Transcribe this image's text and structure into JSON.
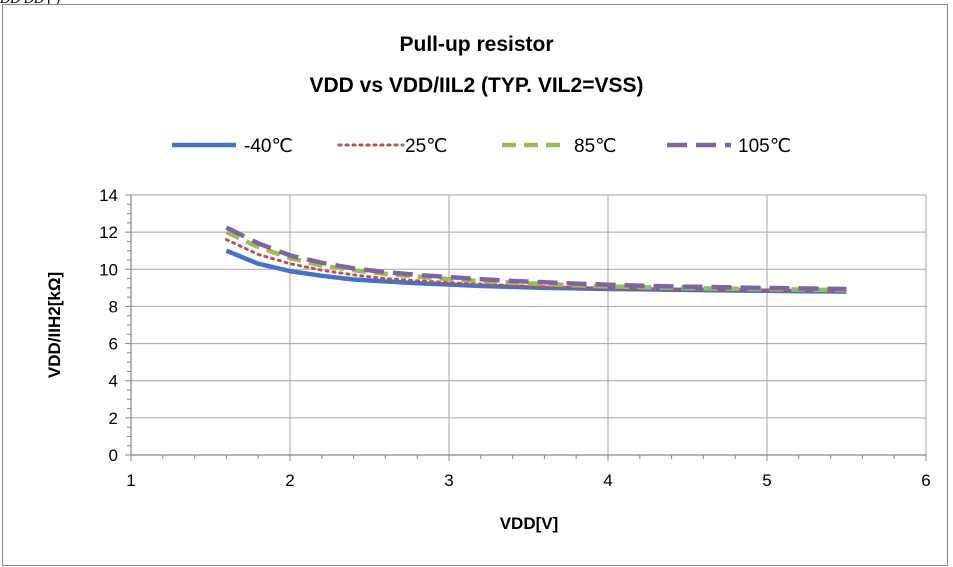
{
  "page": {
    "top_strip_text": "DD       DD          (                                  )"
  },
  "chart_data": {
    "type": "line",
    "title": "Pull-up resistor",
    "subtitle": "VDD vs VDD/IIL2 (TYP. VIL2=VSS)",
    "xlabel": "VDD[V]",
    "ylabel": "VDD/IIH2[kΩ]",
    "xlim": [
      1,
      6
    ],
    "ylim": [
      0,
      14
    ],
    "xticks": [
      1,
      2,
      3,
      4,
      5,
      6
    ],
    "yticks": [
      0,
      2,
      4,
      6,
      8,
      10,
      12,
      14
    ],
    "grid": true,
    "legend_position": "top",
    "x": [
      1.6,
      1.8,
      2.0,
      2.2,
      2.4,
      2.6,
      2.8,
      3.0,
      3.2,
      3.4,
      3.6,
      3.8,
      4.0,
      4.2,
      4.4,
      4.6,
      4.8,
      5.0,
      5.2,
      5.4,
      5.5
    ],
    "series": [
      {
        "name": "-40℃",
        "color": "#4472C4",
        "dash": "solid",
        "values": [
          11.0,
          10.3,
          9.9,
          9.65,
          9.45,
          9.35,
          9.25,
          9.18,
          9.1,
          9.05,
          9.0,
          8.97,
          8.94,
          8.92,
          8.9,
          8.88,
          8.86,
          8.84,
          8.82,
          8.81,
          8.8
        ]
      },
      {
        "name": "25℃",
        "color": "#C0504D",
        "dash": "dot",
        "values": [
          11.6,
          10.8,
          10.3,
          9.95,
          9.7,
          9.5,
          9.38,
          9.28,
          9.2,
          9.12,
          9.06,
          9.02,
          8.98,
          8.95,
          8.93,
          8.91,
          8.89,
          8.87,
          8.85,
          8.83,
          8.82
        ]
      },
      {
        "name": "85℃",
        "color": "#9BBB59",
        "dash": "dash",
        "values": [
          12.0,
          11.2,
          10.6,
          10.2,
          9.95,
          9.75,
          9.6,
          9.47,
          9.37,
          9.28,
          9.2,
          9.13,
          9.08,
          9.04,
          9.0,
          8.97,
          8.95,
          8.93,
          8.91,
          8.89,
          8.88
        ]
      },
      {
        "name": "105℃",
        "color": "#8064A2",
        "dash": "longdash",
        "values": [
          12.25,
          11.4,
          10.75,
          10.35,
          10.05,
          9.85,
          9.7,
          9.58,
          9.47,
          9.37,
          9.3,
          9.23,
          9.17,
          9.12,
          9.08,
          9.05,
          9.02,
          8.99,
          8.97,
          8.95,
          8.94
        ]
      }
    ]
  }
}
